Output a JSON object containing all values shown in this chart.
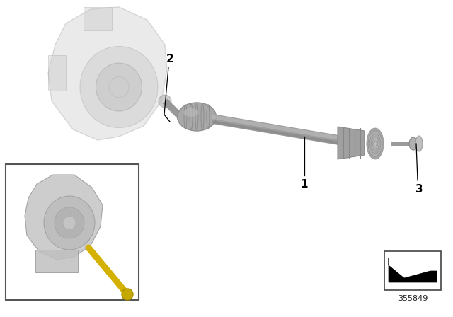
{
  "background_color": "#ffffff",
  "part_number": "355849",
  "figsize": [
    6.4,
    4.48
  ],
  "dpi": 100,
  "shaft_color": "#9a9a9a",
  "shaft_dark": "#888888",
  "shaft_light": "#b5b5b5",
  "gearbox_color": "#c0c0c0",
  "gearbox_alpha": 0.4,
  "yellow": "#d4b000",
  "label_fontsize": 11,
  "pn_fontsize": 8
}
